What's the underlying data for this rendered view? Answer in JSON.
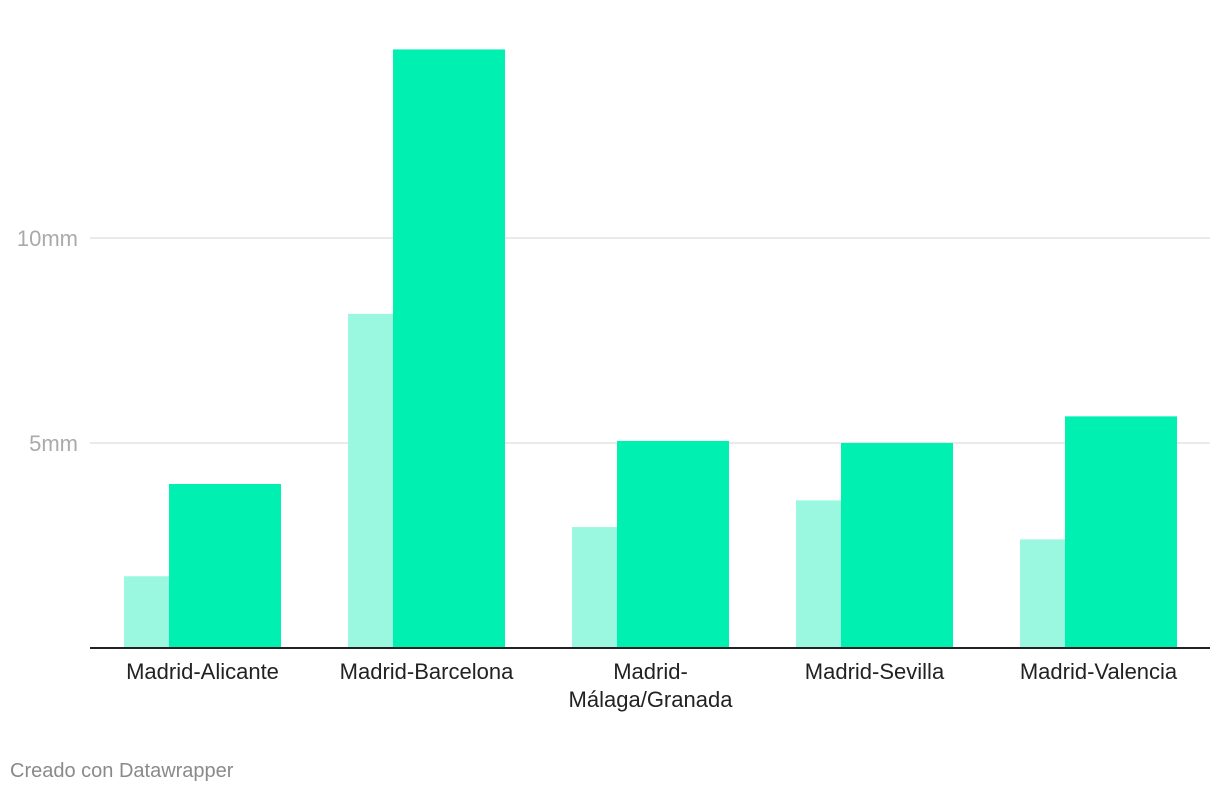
{
  "chart_data": {
    "type": "bar",
    "categories": [
      [
        "Madrid-Alicante"
      ],
      [
        "Madrid-Barcelona"
      ],
      [
        "Madrid-",
        "Málaga/Granada"
      ],
      [
        "Madrid-Sevilla"
      ],
      [
        "Madrid-Valencia"
      ]
    ],
    "series": [
      {
        "values": [
          1.75,
          8.15,
          2.95,
          3.6,
          2.65
        ],
        "color": "#9af8e0"
      },
      {
        "values": [
          4.0,
          14.6,
          5.05,
          5.0,
          5.65
        ],
        "color": "#00f0b2"
      }
    ],
    "y_ticks": [
      {
        "value": 5,
        "label": "5mm"
      },
      {
        "value": 10,
        "label": "10mm"
      }
    ],
    "ylim": [
      0,
      15
    ],
    "grid": true,
    "legend": "none",
    "title": "",
    "xlabel": "",
    "ylabel": ""
  },
  "credit": "Creado con Datawrapper"
}
